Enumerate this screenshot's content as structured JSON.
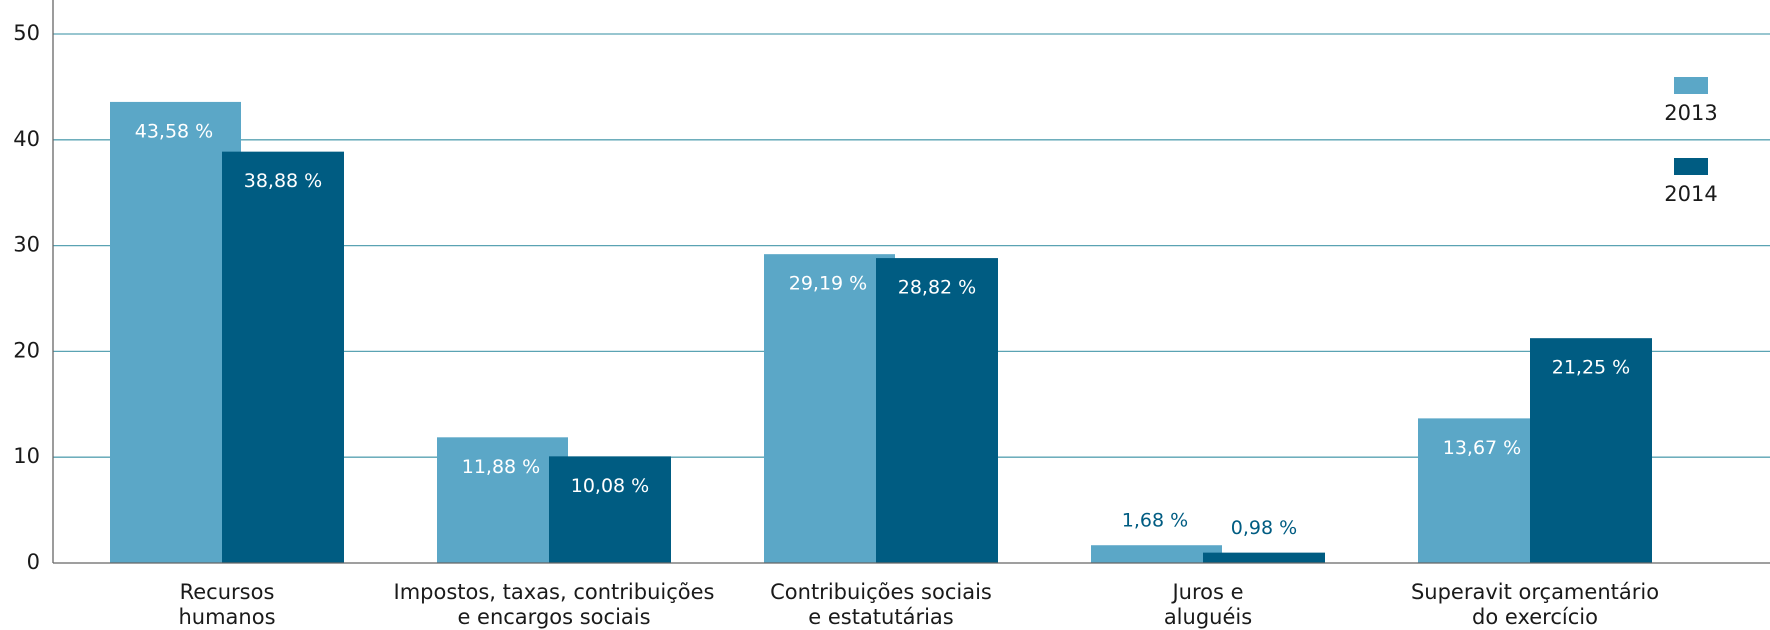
{
  "chart_data": {
    "type": "bar",
    "categories": [
      [
        "Recursos",
        "humanos"
      ],
      [
        "Impostos, taxas, contribuições",
        "e encargos sociais"
      ],
      [
        "Contribuições sociais",
        "e estatutárias"
      ],
      [
        "Juros e",
        "aluguéis"
      ],
      [
        "Superavit orçamentário",
        "do exercício"
      ]
    ],
    "series": [
      {
        "name": "2013",
        "color": "#5ba7c7",
        "values": [
          43.58,
          11.88,
          29.19,
          1.68,
          13.67
        ],
        "value_labels": [
          "43,58 %",
          "11,88 %",
          "29,19 %",
          "1,68 %",
          "13,67 %"
        ]
      },
      {
        "name": "2014",
        "color": "#005c82",
        "values": [
          38.88,
          10.08,
          28.82,
          0.98,
          21.25
        ],
        "value_labels": [
          "38,88 %",
          "10,08 %",
          "28,82 %",
          "0,98 %",
          "21,25 %"
        ]
      }
    ],
    "ylim": [
      0,
      50
    ],
    "yticks": [
      0,
      10,
      20,
      30,
      40,
      50
    ],
    "grid": true,
    "legend": "upper right"
  }
}
